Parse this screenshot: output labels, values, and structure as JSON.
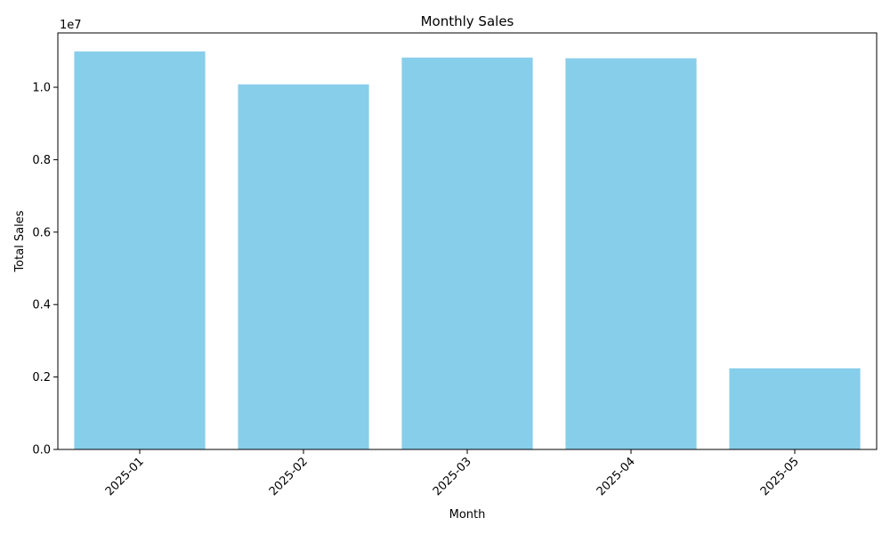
{
  "chart_data": {
    "type": "bar",
    "title": "Monthly Sales",
    "xlabel": "Month",
    "ylabel": "Total Sales",
    "scale_label": "1e7",
    "categories": [
      "2025-01",
      "2025-02",
      "2025-03",
      "2025-04",
      "2025-05"
    ],
    "values": [
      10990000,
      10080000,
      10820000,
      10800000,
      2240000
    ],
    "ylim": [
      0,
      11500000
    ],
    "yticks": [
      0,
      2000000,
      4000000,
      6000000,
      8000000,
      10000000
    ],
    "ytick_labels": [
      "0.0",
      "0.2",
      "0.4",
      "0.6",
      "0.8",
      "1.0"
    ],
    "grid": false,
    "xtick_rotation": "45deg",
    "colors": {
      "bar": "#87ceeb",
      "axis": "#000000"
    }
  }
}
